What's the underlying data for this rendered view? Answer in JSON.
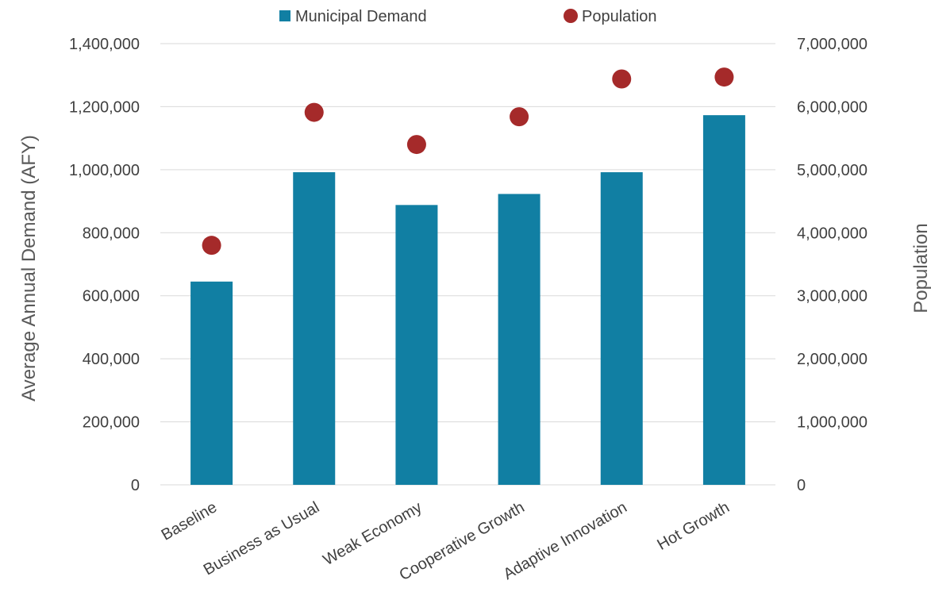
{
  "chart_data": {
    "type": "bar",
    "categories": [
      "Baseline",
      "Business as Usual",
      "Weak Economy",
      "Cooperative Growth",
      "Adaptive Innovation",
      "Hot Growth"
    ],
    "series": [
      {
        "name": "Municipal Demand",
        "type": "bar",
        "axis": "left",
        "values": [
          645000,
          992000,
          888000,
          923000,
          992000,
          1173000
        ]
      },
      {
        "name": "Population",
        "type": "scatter",
        "axis": "right",
        "values": [
          3800000,
          5910000,
          5400000,
          5840000,
          6440000,
          6470000
        ]
      }
    ],
    "ylabel": "Average Annual Demand (AFY)",
    "ylabel_right": "Population",
    "ylim": [
      0,
      1400000
    ],
    "ylim_right": [
      0,
      7000000
    ],
    "yticks": [
      "0",
      "200,000",
      "400,000",
      "600,000",
      "800,000",
      "1,000,000",
      "1,200,000",
      "1,400,000"
    ],
    "yticks_right": [
      "0",
      "1,000,000",
      "2,000,000",
      "3,000,000",
      "4,000,000",
      "5,000,000",
      "6,000,000",
      "7,000,000"
    ],
    "grid": true,
    "legend_position": "top-center",
    "colors": {
      "bar": "#117fa3",
      "point": "#a52a2a",
      "grid": "#d9d9d9"
    }
  }
}
